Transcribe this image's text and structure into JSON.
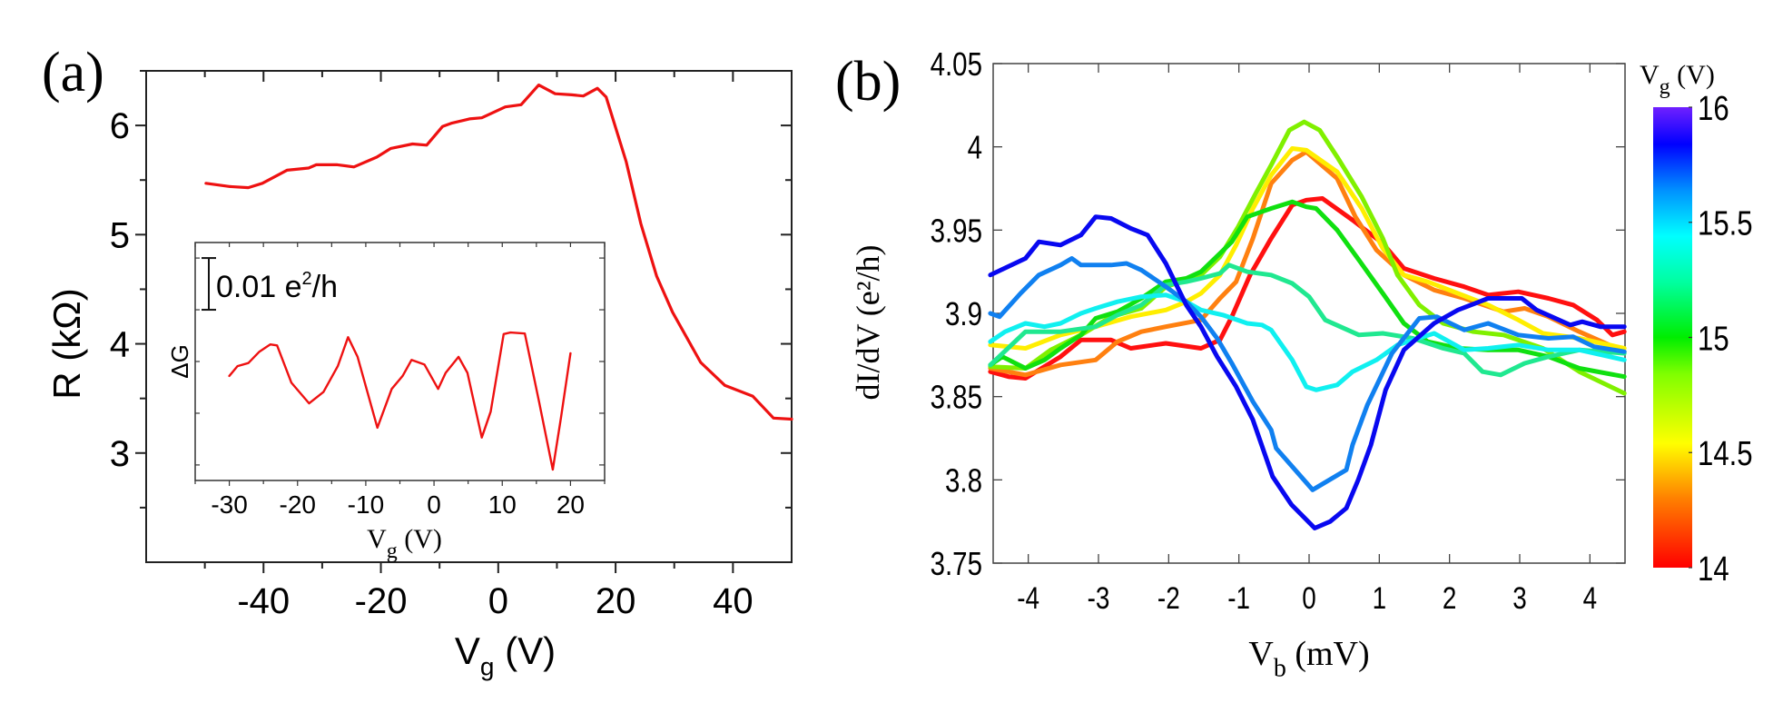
{
  "panels": {
    "a_label": "(a)",
    "b_label": "(b)"
  },
  "chart_data": [
    {
      "id": "a-main",
      "type": "line",
      "xlabel": {
        "base": "V",
        "sub": "g",
        "after": " (V)"
      },
      "ylabel": "R (kΩ)",
      "xlim": [
        -60,
        50
      ],
      "ylim": [
        2,
        6.5
      ],
      "xticks": [
        -40,
        -20,
        0,
        20,
        40
      ],
      "yticks": [
        3,
        4,
        5,
        6
      ],
      "grid": false,
      "series": [
        {
          "color": "#ee1111",
          "x": [
            -49.8,
            -45.7,
            -42.6,
            -40.2,
            -36,
            -32.3,
            -31,
            -27.4,
            -24.6,
            -20.7,
            -18.3,
            -14.6,
            -12.2,
            -9.5,
            -8,
            -4.9,
            -2.8,
            1.2,
            3.9,
            6.9,
            9.7,
            12.5,
            14.5,
            16.9,
            18.4,
            21.8,
            24.3,
            27,
            29.7,
            34.5,
            38.6,
            43.4,
            46.9,
            50
          ],
          "y": [
            5.47,
            5.44,
            5.43,
            5.47,
            5.59,
            5.61,
            5.64,
            5.64,
            5.62,
            5.71,
            5.79,
            5.83,
            5.82,
            5.99,
            6.02,
            6.06,
            6.07,
            6.17,
            6.19,
            6.37,
            6.29,
            6.28,
            6.27,
            6.34,
            6.26,
            5.67,
            5.1,
            4.62,
            4.29,
            3.83,
            3.62,
            3.52,
            3.32,
            3.31
          ]
        }
      ]
    },
    {
      "id": "a-inset",
      "type": "line",
      "xlabel": {
        "base": "V",
        "sub": "g",
        "after": " (V)"
      },
      "ylabel": "ΔG",
      "scale_bar": "0.01 e²/h",
      "scale_bar_value": 0.01,
      "xlim": [
        -35,
        25
      ],
      "ylim": [
        -0.023,
        0.023
      ],
      "xticks": [
        -30,
        -20,
        -10,
        0,
        10,
        20
      ],
      "grid": false,
      "series": [
        {
          "color": "#ee1111",
          "x": [
            -30,
            -28.8,
            -27.2,
            -25.6,
            -24,
            -23,
            -20.9,
            -18.3,
            -16.2,
            -14.1,
            -12.6,
            -11.2,
            -8.3,
            -6.2,
            -4.6,
            -3.3,
            -1.4,
            0.6,
            1.7,
            3.6,
            4.9,
            7,
            8.3,
            10.2,
            11.2,
            13.3,
            15.4,
            17.4,
            18.6,
            20
          ],
          "y": [
            -0.0028,
            -0.0009,
            -0.0003,
            0.0019,
            0.0033,
            0.0031,
            -0.0041,
            -0.0081,
            -0.0059,
            -0.0009,
            0.0047,
            0.0009,
            -0.0128,
            -0.0053,
            -0.0028,
            0.0003,
            -0.0006,
            -0.0053,
            -0.0022,
            0.0009,
            -0.0022,
            -0.0147,
            -0.0097,
            0.0053,
            0.0056,
            0.0054,
            -0.0078,
            -0.0209,
            -0.0109,
            0.0016
          ]
        }
      ]
    },
    {
      "id": "b",
      "type": "line",
      "xlabel": {
        "base": "V",
        "sub": "b",
        "after": " (mV)"
      },
      "ylabel": "dI/dV (e²/h)",
      "xlim": [
        -4.5,
        4.5
      ],
      "ylim": [
        3.75,
        4.05
      ],
      "xticks": [
        -4,
        -3,
        -2,
        -1,
        0,
        1,
        2,
        3,
        4
      ],
      "yticks": [
        3.75,
        3.8,
        3.85,
        3.9,
        3.95,
        4,
        4.05
      ],
      "ytick_labels": [
        "3.75",
        "3.8",
        "3.85",
        "3.9",
        "3.95",
        "4",
        "4.05"
      ],
      "grid": false,
      "colorbar": {
        "title": {
          "base": "V",
          "sub": "g",
          "after": " (V)"
        },
        "range": [
          14,
          16
        ],
        "ticks": [
          14,
          14.5,
          15,
          15.5,
          16
        ],
        "tick_labels": [
          "14",
          "14.5",
          "15",
          "15.5",
          "16"
        ],
        "colormap": "jet",
        "stops": [
          "#ff0000",
          "#ff8000",
          "#ffff00",
          "#80ff00",
          "#00ee00",
          "#00ffa0",
          "#00ffff",
          "#0090ff",
          "#0000ff",
          "#7020ff"
        ]
      },
      "series": [
        {
          "vg": 14.0,
          "color": "#ff1010",
          "x": [
            -4.54,
            -4.28,
            -4.04,
            -3.54,
            -3.25,
            -2.82,
            -2.54,
            -2.04,
            -1.54,
            -1.27,
            -1.1,
            -0.84,
            -0.54,
            -0.24,
            -0.04,
            0.19,
            0.62,
            1.05,
            1.35,
            1.78,
            2.21,
            2.55,
            2.98,
            3.41,
            3.76,
            4.1,
            4.32,
            4.49
          ],
          "y": [
            3.865,
            3.862,
            3.861,
            3.874,
            3.884,
            3.884,
            3.879,
            3.882,
            3.879,
            3.884,
            3.898,
            3.923,
            3.945,
            3.965,
            3.968,
            3.969,
            3.956,
            3.942,
            3.927,
            3.921,
            3.916,
            3.911,
            3.913,
            3.909,
            3.905,
            3.896,
            3.887,
            3.889
          ]
        },
        {
          "vg": 14.2,
          "color": "#ff8010",
          "x": [
            -4.54,
            -4.04,
            -3.54,
            -3.04,
            -2.73,
            -2.39,
            -2.04,
            -1.54,
            -1.27,
            -1.04,
            -0.8,
            -0.54,
            -0.24,
            -0.04,
            0.4,
            0.66,
            0.96,
            1.35,
            1.78,
            2.21,
            2.77,
            3.07,
            3.41,
            3.85,
            4.49
          ],
          "y": [
            3.867,
            3.863,
            3.869,
            3.872,
            3.883,
            3.889,
            3.892,
            3.896,
            3.909,
            3.919,
            3.945,
            3.978,
            3.992,
            3.997,
            3.981,
            3.958,
            3.938,
            3.923,
            3.914,
            3.909,
            3.901,
            3.903,
            3.898,
            3.889,
            3.877
          ]
        },
        {
          "vg": 14.45,
          "color": "#ffee00",
          "x": [
            -4.54,
            -4.04,
            -3.54,
            -3.04,
            -2.54,
            -2.04,
            -1.75,
            -1.54,
            -1.27,
            -1.04,
            -0.8,
            -0.54,
            -0.24,
            -0.04,
            0.4,
            0.75,
            1.05,
            1.35,
            1.69,
            2.12,
            2.55,
            2.98,
            3.33,
            3.85,
            4.49
          ],
          "y": [
            3.881,
            3.879,
            3.887,
            3.892,
            3.898,
            3.902,
            3.907,
            3.912,
            3.923,
            3.941,
            3.963,
            3.983,
            3.999,
            3.998,
            3.985,
            3.963,
            3.939,
            3.923,
            3.919,
            3.912,
            3.905,
            3.896,
            3.888,
            3.885,
            3.879
          ]
        },
        {
          "vg": 14.65,
          "color": "#80f000",
          "x": [
            -4.54,
            -4.04,
            -3.68,
            -3.25,
            -2.82,
            -2.39,
            -2.04,
            -1.54,
            -1.27,
            -1.01,
            -0.76,
            -0.54,
            -0.28,
            -0.07,
            0.15,
            0.4,
            0.75,
            1.05,
            1.26,
            1.57,
            1.91,
            2.34,
            2.77,
            3.33,
            3.85,
            4.49
          ],
          "y": [
            3.868,
            3.867,
            3.878,
            3.887,
            3.898,
            3.903,
            3.916,
            3.923,
            3.934,
            3.952,
            3.972,
            3.989,
            4.01,
            4.015,
            4.01,
            3.994,
            3.97,
            3.945,
            3.923,
            3.905,
            3.894,
            3.889,
            3.887,
            3.879,
            3.865,
            3.852
          ]
        },
        {
          "vg": 14.9,
          "color": "#10e010",
          "x": [
            -4.54,
            -4.37,
            -4.04,
            -3.77,
            -3.54,
            -3.25,
            -3.04,
            -2.73,
            -2.39,
            -2.04,
            -1.75,
            -1.54,
            -1.27,
            -1.1,
            -0.88,
            -0.54,
            -0.24,
            -0.04,
            0.1,
            0.4,
            0.71,
            1.05,
            1.35,
            1.69,
            2.12,
            2.55,
            2.98,
            3.41,
            3.85,
            4.49
          ],
          "y": [
            3.869,
            3.874,
            3.867,
            3.872,
            3.879,
            3.887,
            3.897,
            3.901,
            3.909,
            3.919,
            3.921,
            3.925,
            3.936,
            3.943,
            3.958,
            3.963,
            3.967,
            3.964,
            3.963,
            3.95,
            3.932,
            3.912,
            3.894,
            3.883,
            3.879,
            3.878,
            3.878,
            3.874,
            3.867,
            3.862
          ]
        },
        {
          "vg": 15.15,
          "color": "#20e890",
          "x": [
            -4.54,
            -4.04,
            -3.54,
            -3.04,
            -2.73,
            -2.39,
            -2.04,
            -1.75,
            -1.54,
            -1.27,
            -1.14,
            -0.88,
            -0.54,
            -0.24,
            0.0,
            0.23,
            0.71,
            1.05,
            1.48,
            1.91,
            2.21,
            2.47,
            2.73,
            3.07,
            3.41,
            3.85,
            4.49
          ],
          "y": [
            3.869,
            3.889,
            3.889,
            3.892,
            3.899,
            3.905,
            3.917,
            3.919,
            3.921,
            3.924,
            3.929,
            3.925,
            3.923,
            3.918,
            3.91,
            3.896,
            3.887,
            3.888,
            3.885,
            3.879,
            3.876,
            3.865,
            3.863,
            3.87,
            3.874,
            3.878,
            3.876
          ]
        },
        {
          "vg": 15.45,
          "color": "#10f0f0",
          "x": [
            -4.54,
            -4.33,
            -4.04,
            -3.77,
            -3.54,
            -3.25,
            -3.04,
            -2.73,
            -2.39,
            -2.04,
            -1.75,
            -1.54,
            -1.23,
            -0.88,
            -0.67,
            -0.54,
            -0.24,
            -0.04,
            0.1,
            0.4,
            0.62,
            0.96,
            1.26,
            1.78,
            2.21,
            2.55,
            2.98,
            3.41,
            3.85,
            4.28,
            4.49
          ],
          "y": [
            3.883,
            3.889,
            3.894,
            3.892,
            3.894,
            3.9,
            3.903,
            3.907,
            3.91,
            3.911,
            3.907,
            3.902,
            3.899,
            3.894,
            3.893,
            3.89,
            3.872,
            3.856,
            3.854,
            3.857,
            3.865,
            3.872,
            3.881,
            3.888,
            3.878,
            3.879,
            3.881,
            3.878,
            3.878,
            3.874,
            3.872
          ]
        },
        {
          "vg": 15.65,
          "color": "#1080f0",
          "x": [
            -4.54,
            -4.41,
            -4.11,
            -3.85,
            -3.54,
            -3.38,
            -3.25,
            -3.04,
            -2.82,
            -2.6,
            -2.39,
            -2.04,
            -1.75,
            -1.54,
            -1.31,
            -1.1,
            -0.8,
            -0.54,
            -0.47,
            0.05,
            0.53,
            0.62,
            0.83,
            1.18,
            1.57,
            1.82,
            2.21,
            2.55,
            2.98,
            3.41,
            3.76,
            4.06,
            4.49
          ],
          "y": [
            3.9,
            3.898,
            3.912,
            3.923,
            3.929,
            3.933,
            3.929,
            3.929,
            3.929,
            3.93,
            3.926,
            3.916,
            3.907,
            3.898,
            3.885,
            3.87,
            3.847,
            3.83,
            3.819,
            3.794,
            3.806,
            3.821,
            3.845,
            3.876,
            3.897,
            3.898,
            3.89,
            3.894,
            3.887,
            3.885,
            3.886,
            3.88,
            3.877
          ]
        },
        {
          "vg": 15.9,
          "color": "#0808f0",
          "x": [
            -4.54,
            -4.04,
            -3.85,
            -3.54,
            -3.25,
            -3.04,
            -2.82,
            -2.54,
            -2.3,
            -2.04,
            -1.75,
            -1.54,
            -1.31,
            -1.04,
            -0.8,
            -0.52,
            -0.25,
            0.08,
            0.3,
            0.53,
            0.7,
            0.88,
            1.09,
            1.35,
            1.78,
            2.12,
            2.55,
            2.73,
            3.03,
            3.24,
            3.72,
            3.89,
            4.15,
            4.49
          ],
          "y": [
            3.923,
            3.933,
            3.943,
            3.941,
            3.947,
            3.958,
            3.957,
            3.951,
            3.947,
            3.93,
            3.905,
            3.892,
            3.874,
            3.856,
            3.836,
            3.802,
            3.785,
            3.771,
            3.775,
            3.783,
            3.8,
            3.821,
            3.854,
            3.878,
            3.894,
            3.902,
            3.909,
            3.909,
            3.909,
            3.902,
            3.893,
            3.895,
            3.892,
            3.892
          ]
        }
      ]
    }
  ]
}
